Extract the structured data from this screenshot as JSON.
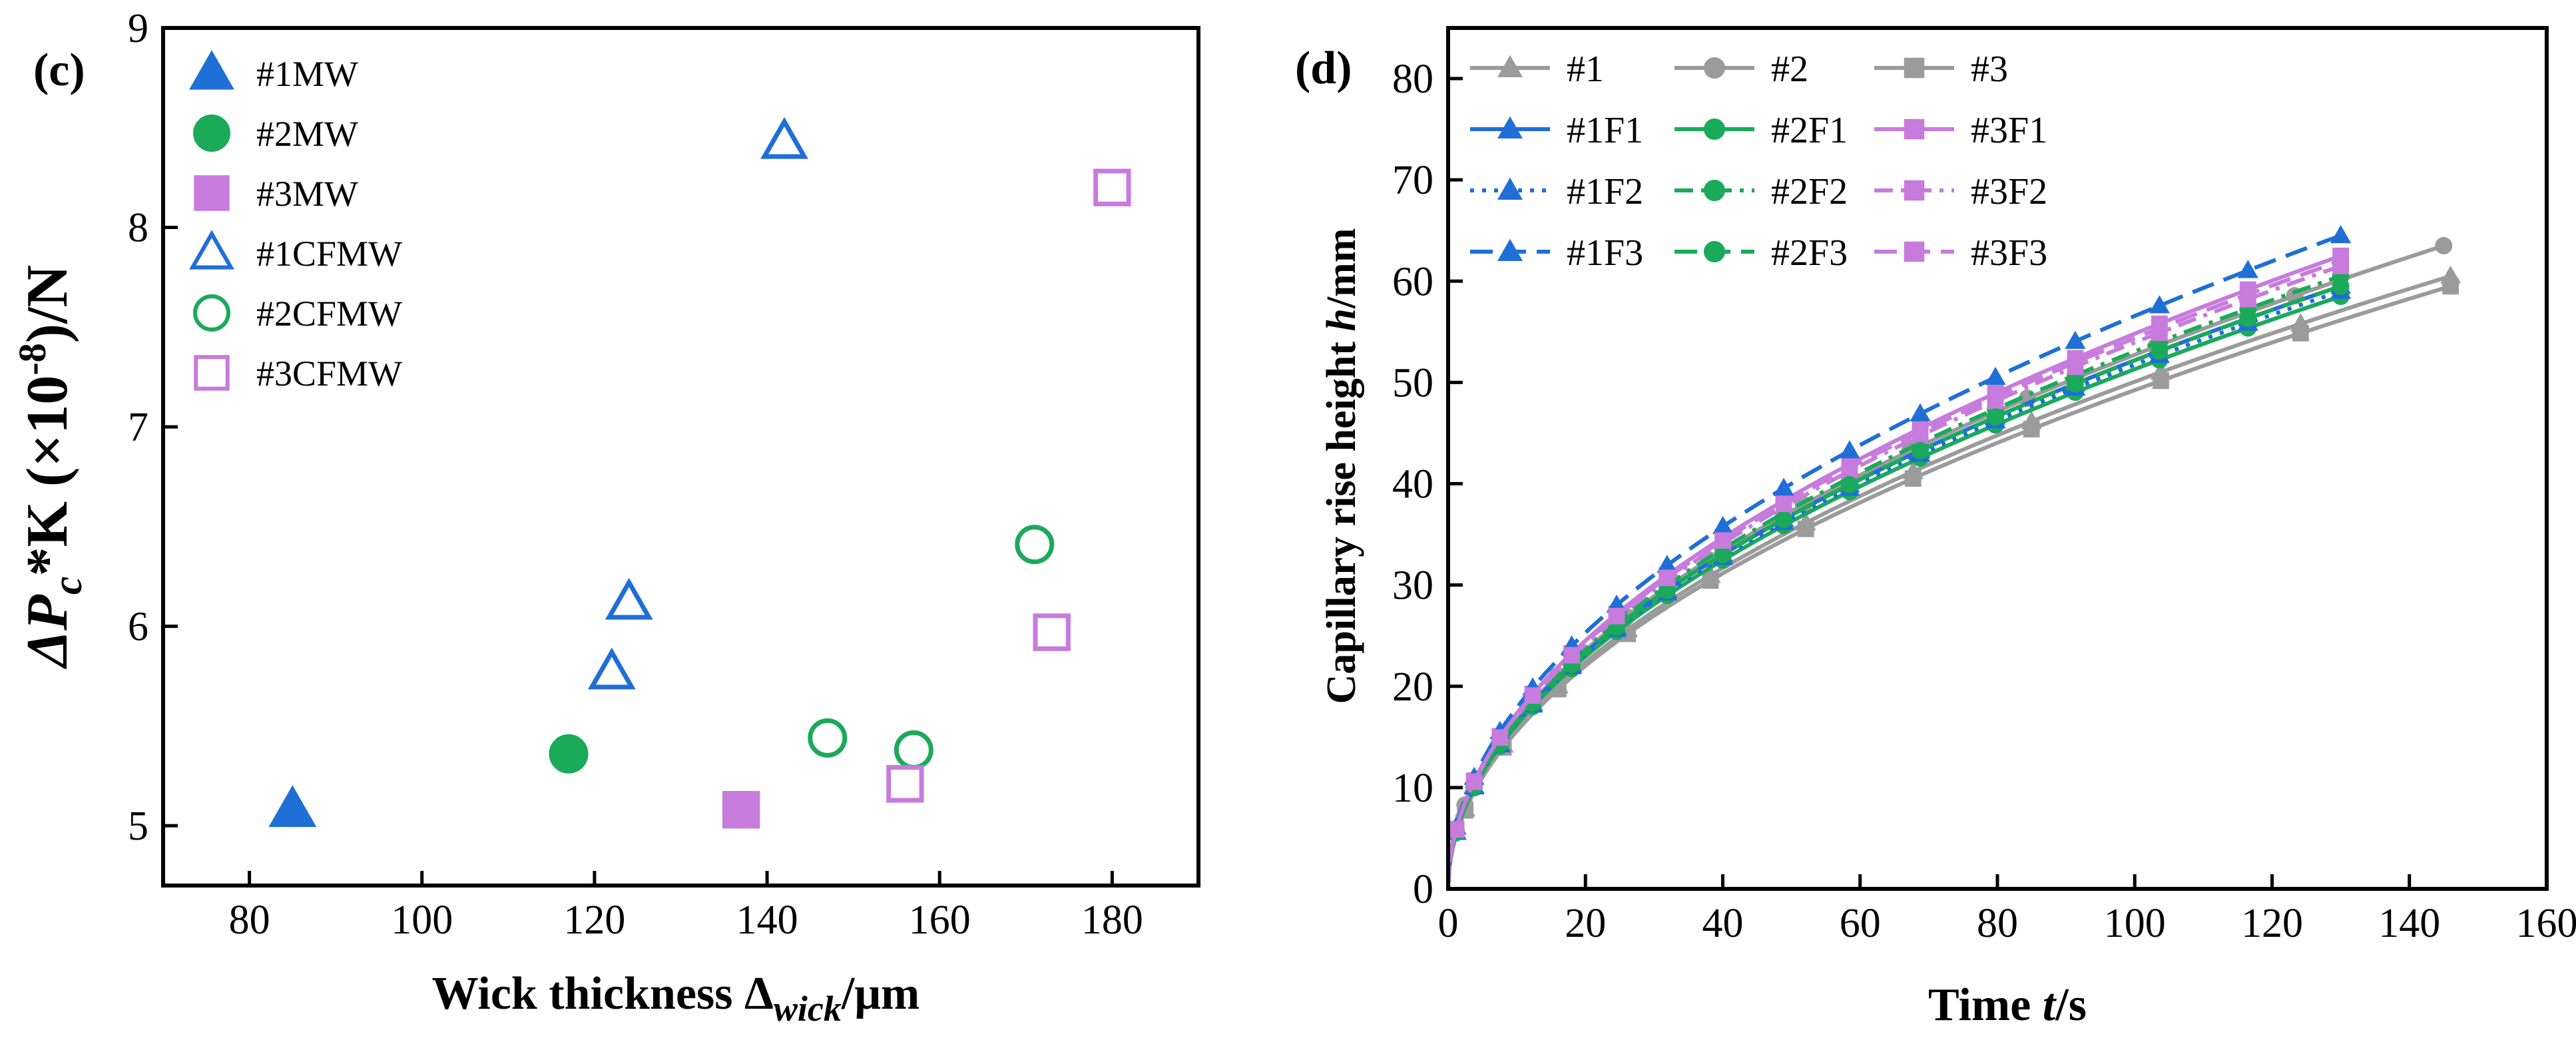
{
  "chart_data": [
    {
      "type": "scatter",
      "panel_label": "(c)",
      "xlabel_main": "Wick thickness Δ",
      "xlabel_sub": "wick",
      "xlabel_unit": "/μm",
      "ylabel_delta_p": "ΔP",
      "ylabel_sub": "c",
      "ylabel_mid": "*K (×10",
      "ylabel_exp": "-8",
      "ylabel_unit": ")/N",
      "xlim": [
        70,
        190
      ],
      "ylim": [
        4.7,
        9
      ],
      "xticks": [
        "80",
        "100",
        "120",
        "140",
        "160",
        "180"
      ],
      "yticks": [
        "5",
        "6",
        "7",
        "8",
        "9"
      ],
      "legend_position": "top-left",
      "series": [
        {
          "name": "#1MW",
          "marker": "triangle",
          "filled": true,
          "color": "#1f6fd6",
          "points": [
            [
              85,
              5.08
            ]
          ]
        },
        {
          "name": "#2MW",
          "marker": "circle",
          "filled": true,
          "color": "#1aaa5a",
          "points": [
            [
              117,
              5.36
            ]
          ]
        },
        {
          "name": "#3MW",
          "marker": "square",
          "filled": true,
          "color": "#c77bdc",
          "points": [
            [
              137,
              5.08
            ]
          ]
        },
        {
          "name": "#1CFMW",
          "marker": "triangle",
          "filled": false,
          "color": "#1f6fd6",
          "points": [
            [
              124,
              6.12
            ],
            [
              122,
              5.77
            ],
            [
              142,
              8.43
            ]
          ]
        },
        {
          "name": "#2CFMW",
          "marker": "circle",
          "filled": false,
          "color": "#1aaa5a",
          "points": [
            [
              147,
              5.44
            ],
            [
              157,
              5.38
            ],
            [
              171,
              6.41
            ]
          ]
        },
        {
          "name": "#3CFMW",
          "marker": "square",
          "filled": false,
          "color": "#c77bdc",
          "points": [
            [
              156,
              5.21
            ],
            [
              173,
              5.97
            ],
            [
              180,
              8.2
            ]
          ]
        }
      ]
    },
    {
      "type": "line",
      "panel_label": "(d)",
      "xlabel_main": "Time ",
      "xlabel_var": "t",
      "xlabel_unit": "/s",
      "ylabel_main": "Capillary rise height ",
      "ylabel_var": "h",
      "ylabel_unit": "/mm",
      "xlim": [
        0,
        160
      ],
      "ylim": [
        0,
        85
      ],
      "xticks": [
        "0",
        "20",
        "40",
        "60",
        "80",
        "100",
        "120",
        "140",
        "160"
      ],
      "yticks": [
        "0",
        "10",
        "20",
        "30",
        "40",
        "50",
        "60",
        "70",
        "80"
      ],
      "legend_position": "top-left",
      "series": [
        {
          "name": "#1",
          "color": "#9b9b9b",
          "dash": "solid",
          "marker": "triangle",
          "t_end": 146,
          "h_end": 60.5
        },
        {
          "name": "#2",
          "color": "#9b9b9b",
          "dash": "solid",
          "marker": "circle",
          "t_end": 145,
          "h_end": 63.5
        },
        {
          "name": "#3",
          "color": "#9b9b9b",
          "dash": "solid",
          "marker": "square",
          "t_end": 146,
          "h_end": 59.5
        },
        {
          "name": "#1F1",
          "color": "#1f6fd6",
          "dash": "solid",
          "marker": "triangle",
          "t_end": 130,
          "h_end": 59.5
        },
        {
          "name": "#2F1",
          "color": "#1aaa5a",
          "dash": "solid",
          "marker": "circle",
          "t_end": 130,
          "h_end": 58.5
        },
        {
          "name": "#3F1",
          "color": "#c77bdc",
          "dash": "solid",
          "marker": "square",
          "t_end": 130,
          "h_end": 62.5
        },
        {
          "name": "#1F2",
          "color": "#1f6fd6",
          "dash": "dot",
          "marker": "triangle",
          "t_end": 130,
          "h_end": 59.0
        },
        {
          "name": "#2F2",
          "color": "#1aaa5a",
          "dash": "dashdot",
          "marker": "circle",
          "t_end": 130,
          "h_end": 60.5
        },
        {
          "name": "#3F2",
          "color": "#c77bdc",
          "dash": "dashdot",
          "marker": "square",
          "t_end": 130,
          "h_end": 61.5
        },
        {
          "name": "#1F3",
          "color": "#1f6fd6",
          "dash": "dash",
          "marker": "triangle",
          "t_end": 130,
          "h_end": 64.5
        },
        {
          "name": "#2F3",
          "color": "#1aaa5a",
          "dash": "dash",
          "marker": "circle",
          "t_end": 130,
          "h_end": 59.5
        },
        {
          "name": "#3F3",
          "color": "#c77bdc",
          "dash": "dash",
          "marker": "square",
          "t_end": 130,
          "h_end": 62.0
        }
      ]
    }
  ]
}
